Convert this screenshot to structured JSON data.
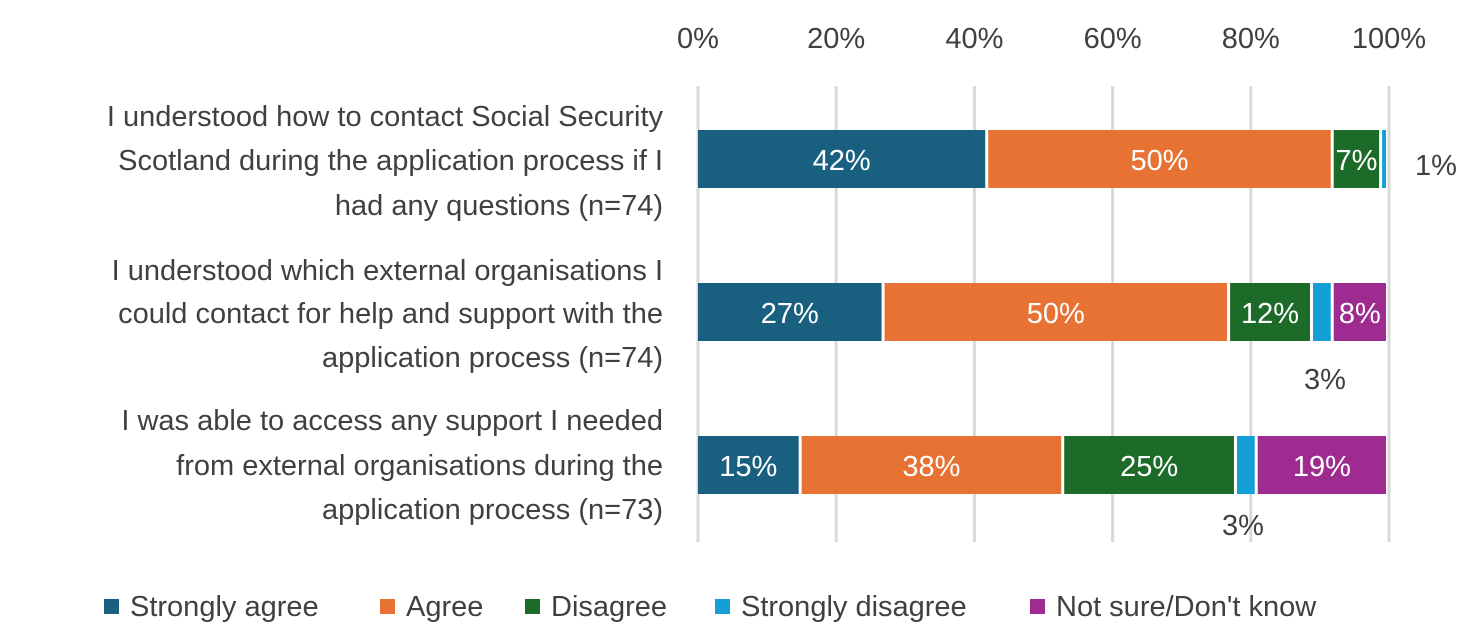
{
  "chart_data": {
    "type": "bar",
    "orientation": "horizontal",
    "stacked": true,
    "percent_stacked": true,
    "title": "",
    "xlabel": "",
    "ylabel": "",
    "xlim": [
      0,
      100
    ],
    "x_ticks": [
      "0%",
      "20%",
      "40%",
      "60%",
      "80%",
      "100%"
    ],
    "x_axis_position": "top",
    "grid": true,
    "legend_position": "bottom",
    "categories": [
      [
        "I understood how to contact Social Security",
        "Scotland during the application process if I",
        "had any questions (n=74)"
      ],
      [
        "I understood which external organisations I",
        "could contact for help and support with the",
        "application process (n=74)"
      ],
      [
        "I was able to access any support I needed",
        "from external organisations during the",
        "application process (n=73)"
      ]
    ],
    "series": [
      {
        "name": "Strongly agree",
        "color": "#185f80",
        "values": [
          42,
          27,
          15
        ],
        "labels": [
          "42%",
          "27%",
          "15%"
        ]
      },
      {
        "name": "Agree",
        "color": "#e87233",
        "values": [
          50,
          50,
          38
        ],
        "labels": [
          "50%",
          "50%",
          "38%"
        ]
      },
      {
        "name": "Disagree",
        "color": "#1d6b28",
        "values": [
          7,
          12,
          25
        ],
        "labels": [
          "7%",
          "12%",
          "25%"
        ]
      },
      {
        "name": "Strongly disagree",
        "color": "#14a0d6",
        "values": [
          1,
          3,
          3
        ],
        "labels": [
          "1%",
          "3%",
          "3%"
        ]
      },
      {
        "name": "Not sure/Don't know",
        "color": "#9e2b90",
        "values": [
          0,
          8,
          19
        ],
        "labels": [
          "",
          "8%",
          "19%"
        ]
      }
    ]
  }
}
